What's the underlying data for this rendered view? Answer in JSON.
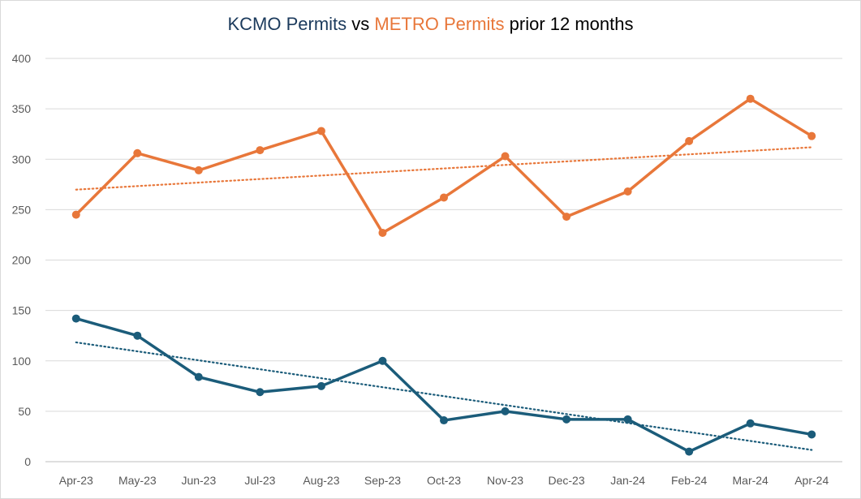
{
  "chart_data": {
    "type": "line",
    "title": {
      "kcmo_part": "KCMO Permits",
      "vs_part": " vs ",
      "metro_part": "METRO Permits",
      "suffix": " prior 12 months"
    },
    "categories": [
      "Apr-23",
      "May-23",
      "Jun-23",
      "Jul-23",
      "Aug-23",
      "Sep-23",
      "Oct-23",
      "Nov-23",
      "Dec-23",
      "Jan-24",
      "Feb-24",
      "Mar-24",
      "Apr-24"
    ],
    "yticks": [
      0,
      50,
      100,
      150,
      200,
      250,
      300,
      350,
      400
    ],
    "ylim": [
      0,
      400
    ],
    "grid": true,
    "series": [
      {
        "name": "KCMO Permits",
        "color": "#1b5c7a",
        "values": [
          142,
          125,
          84,
          69,
          75,
          100,
          41,
          50,
          42,
          42,
          10,
          38,
          27
        ],
        "trendline": {
          "type": "linear",
          "style": "dotted"
        }
      },
      {
        "name": "METRO Permits",
        "color": "#e8773a",
        "values": [
          245,
          306,
          289,
          309,
          328,
          227,
          262,
          303,
          243,
          268,
          318,
          360,
          323
        ],
        "trendline": {
          "type": "linear",
          "style": "dotted"
        }
      }
    ]
  }
}
